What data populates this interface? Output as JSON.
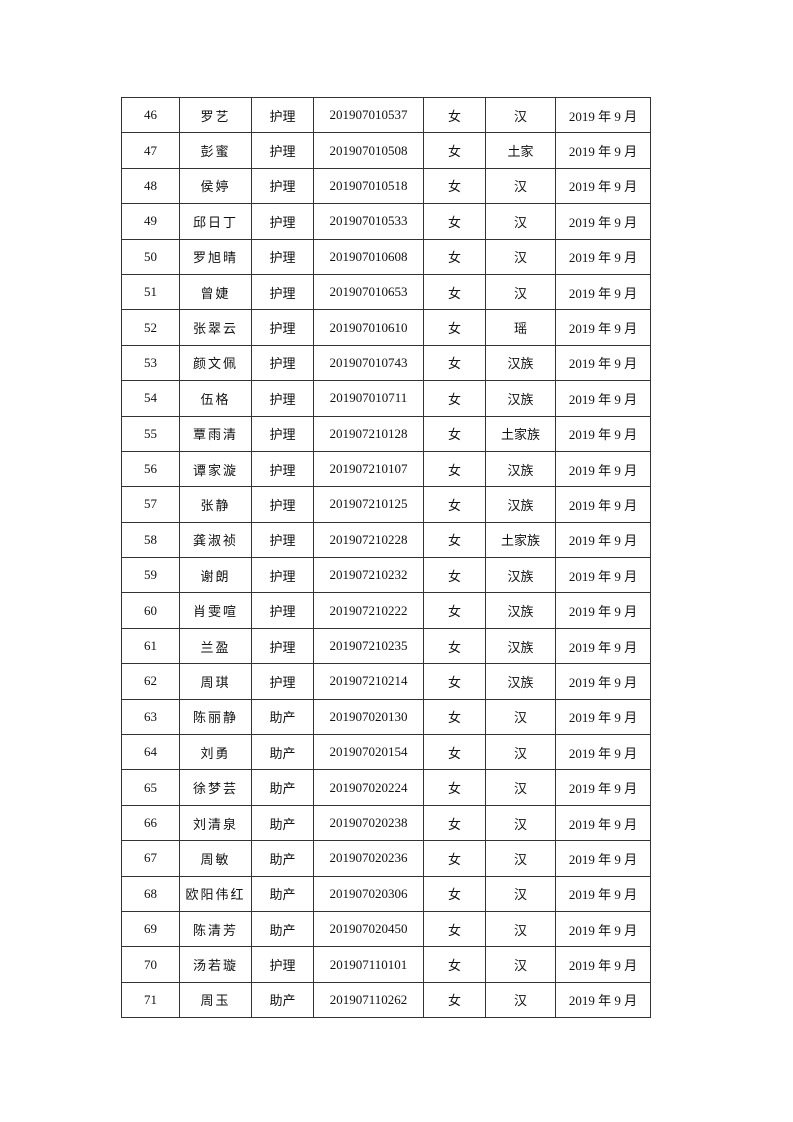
{
  "table": {
    "rows": [
      [
        "46",
        "罗艺",
        "护理",
        "201907010537",
        "女",
        "汉",
        "2019 年 9 月"
      ],
      [
        "47",
        "彭蜜",
        "护理",
        "201907010508",
        "女",
        "土家",
        "2019 年 9 月"
      ],
      [
        "48",
        "侯婷",
        "护理",
        "201907010518",
        "女",
        "汉",
        "2019 年 9 月"
      ],
      [
        "49",
        "邱日丁",
        "护理",
        "201907010533",
        "女",
        "汉",
        "2019 年 9 月"
      ],
      [
        "50",
        "罗旭晴",
        "护理",
        "201907010608",
        "女",
        "汉",
        "2019 年 9 月"
      ],
      [
        "51",
        "曾婕",
        "护理",
        "201907010653",
        "女",
        "汉",
        "2019 年 9 月"
      ],
      [
        "52",
        "张翠云",
        "护理",
        "201907010610",
        "女",
        "瑶",
        "2019 年 9 月"
      ],
      [
        "53",
        "颜文佩",
        "护理",
        "201907010743",
        "女",
        "汉族",
        "2019 年 9 月"
      ],
      [
        "54",
        "伍格",
        "护理",
        "201907010711",
        "女",
        "汉族",
        "2019 年 9 月"
      ],
      [
        "55",
        "覃雨清",
        "护理",
        "201907210128",
        "女",
        "土家族",
        "2019 年 9 月"
      ],
      [
        "56",
        "谭家漩",
        "护理",
        "201907210107",
        "女",
        "汉族",
        "2019 年 9 月"
      ],
      [
        "57",
        "张静",
        "护理",
        "201907210125",
        "女",
        "汉族",
        "2019 年 9 月"
      ],
      [
        "58",
        "龚淑祯",
        "护理",
        "201907210228",
        "女",
        "土家族",
        "2019 年 9 月"
      ],
      [
        "59",
        "谢朗",
        "护理",
        "201907210232",
        "女",
        "汉族",
        "2019 年 9 月"
      ],
      [
        "60",
        "肖雯喧",
        "护理",
        "201907210222",
        "女",
        "汉族",
        "2019 年 9 月"
      ],
      [
        "61",
        "兰盈",
        "护理",
        "201907210235",
        "女",
        "汉族",
        "2019 年 9 月"
      ],
      [
        "62",
        "周琪",
        "护理",
        "201907210214",
        "女",
        "汉族",
        "2019 年 9 月"
      ],
      [
        "63",
        "陈丽静",
        "助产",
        "201907020130",
        "女",
        "汉",
        "2019 年 9 月"
      ],
      [
        "64",
        "刘勇",
        "助产",
        "201907020154",
        "女",
        "汉",
        "2019 年 9 月"
      ],
      [
        "65",
        "徐梦芸",
        "助产",
        "201907020224",
        "女",
        "汉",
        "2019 年 9 月"
      ],
      [
        "66",
        "刘清泉",
        "助产",
        "201907020238",
        "女",
        "汉",
        "2019 年 9 月"
      ],
      [
        "67",
        "周敏",
        "助产",
        "201907020236",
        "女",
        "汉",
        "2019 年 9 月"
      ],
      [
        "68",
        "欧阳伟红",
        "助产",
        "201907020306",
        "女",
        "汉",
        "2019 年 9 月"
      ],
      [
        "69",
        "陈清芳",
        "助产",
        "201907020450",
        "女",
        "汉",
        "2019 年 9 月"
      ],
      [
        "70",
        "汤若璇",
        "护理",
        "201907110101",
        "女",
        "汉",
        "2019 年 9 月"
      ],
      [
        "71",
        "周玉",
        "助产",
        "201907110262",
        "女",
        "汉",
        "2019 年 9 月"
      ]
    ]
  }
}
